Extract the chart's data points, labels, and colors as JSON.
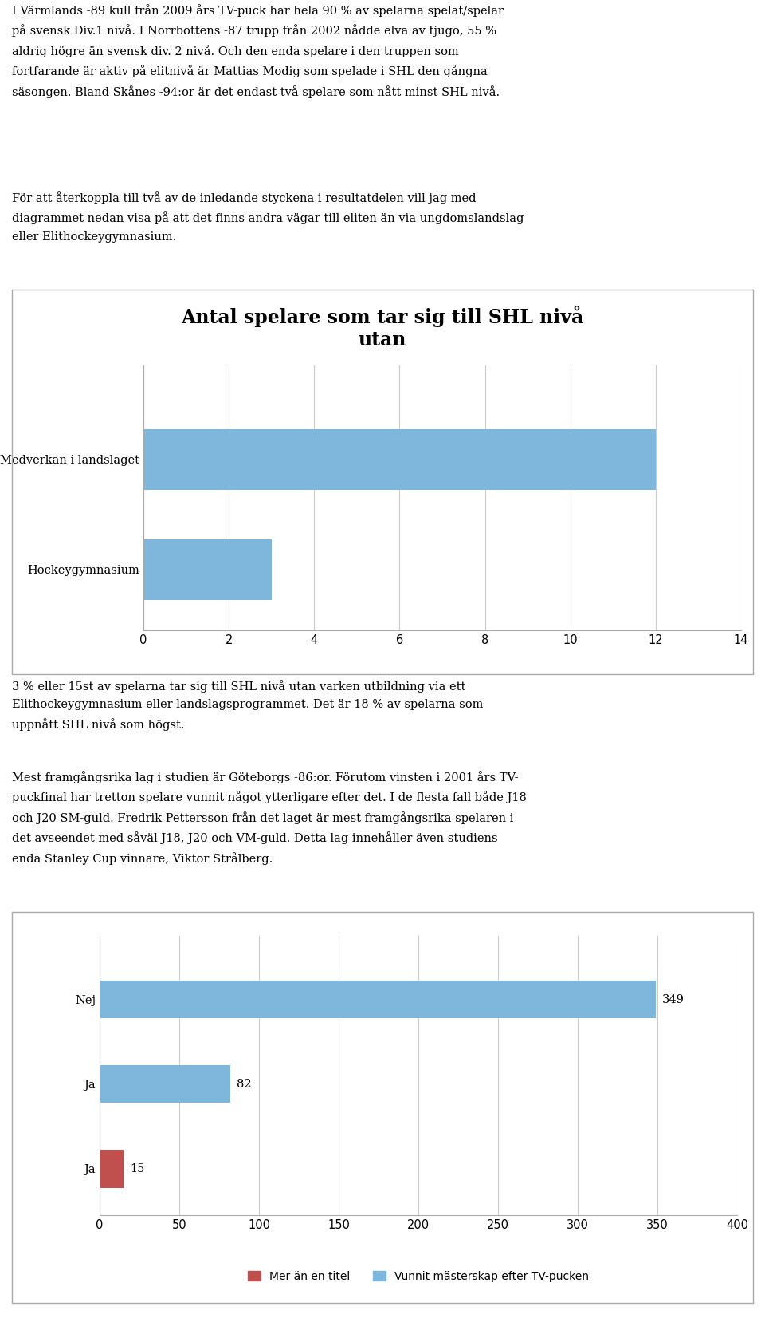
{
  "text_blocks": [
    "I Värmlands -89 kull från 2009 års TV-puck har hela 90 % av spelarna spelat/spelar\npå svensk Div.1 nivå. I Norrbottens -87 trupp från 2002 nådde elva av tjugo, 55 %\naldrig högre än svensk div. 2 nivå. Och den enda spelare i den truppen som\nfortfarande är aktiv på elitnivå är Mattias Modig som spelade i SHL den gångna\nsäsongen. Bland Skånes -94:or är det endast två spelare som nått minst SHL nivå.",
    "För att återkoppla till två av de inledande styckena i resultatdelen vill jag med\ndiagrammet nedan visa på att det finns andra vägar till eliten än via ungdomslandslag\neller Elithockeygymnasium.",
    "3 % eller 15st av spelarna tar sig till SHL nivå utan varken utbildning via ett\nElithockeygymnasium eller landslagsprogrammet. Det är 18 % av spelarna som\nuppnått SHL nivå som högst.",
    "Mest framgångsrika lag i studien är Göteborgs -86:or. Förutom vinsten i 2001 års TV-\npuckfinal har tretton spelare vunnit något ytterligare efter det. I de flesta fall både J18\noch J20 SM-guld. Fredrik Pettersson från det laget är mest framgångsrika spelaren i\ndet avseendet med såväl J18, J20 och VM-guld. Detta lag innehåller även studiens\nenda Stanley Cup vinnare, Viktor Strålberg."
  ],
  "chart1": {
    "title": "Antal spelare som tar sig till SHL nivå\nutan",
    "categories": [
      "Medverkan i landslaget",
      "Hockeygymnasium"
    ],
    "values": [
      12,
      3
    ],
    "bar_color": "#7EB6DC",
    "xlim": [
      0,
      14
    ],
    "xticks": [
      0,
      2,
      4,
      6,
      8,
      10,
      12,
      14
    ]
  },
  "chart2": {
    "categories": [
      "Nej",
      "Ja",
      "Ja"
    ],
    "values": [
      349,
      82,
      15
    ],
    "bar_colors": [
      "#7EB6DC",
      "#7EB6DC",
      "#C0504D"
    ],
    "xlim": [
      0,
      400
    ],
    "xticks": [
      0,
      50,
      100,
      150,
      200,
      250,
      300,
      350,
      400
    ],
    "legend": [
      {
        "label": "Mer än en titel",
        "color": "#C0504D"
      },
      {
        "label": "Vunnit mästerskap efter TV-pucken",
        "color": "#7EB6DC"
      }
    ],
    "annotations": [
      349,
      82,
      15
    ]
  },
  "background_color": "#ffffff",
  "text_color": "#000000",
  "font_size_text": 10.5,
  "font_size_title": 17
}
